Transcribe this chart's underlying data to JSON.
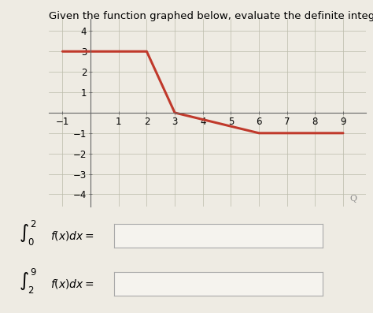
{
  "title": "Given the function graphed below, evaluate the definite integrals.",
  "title_fontsize": 9.5,
  "bg_color": "#eeebe3",
  "line_color": "#c0392b",
  "line_width": 2.2,
  "x_data": [
    -1,
    2,
    3,
    6,
    9
  ],
  "y_data": [
    3,
    3,
    0,
    -1,
    -1
  ],
  "xlim": [
    -1.5,
    9.8
  ],
  "ylim": [
    -4.6,
    4.6
  ],
  "xticks": [
    -1,
    1,
    2,
    3,
    4,
    5,
    6,
    7,
    8,
    9
  ],
  "yticks": [
    -4,
    -3,
    -2,
    -1,
    1,
    2,
    3,
    4
  ],
  "grid_color": "#bbbbaa",
  "tick_label_size": 8.5,
  "label1": "$\\int_0^{\\,2} f(x)dx =$",
  "label2": "$\\int_2^{\\,9} f(x)dx =$",
  "box_color": "#f5f3ee",
  "box_edge_color": "#aaaaaa",
  "magnifier_color": "#888888"
}
